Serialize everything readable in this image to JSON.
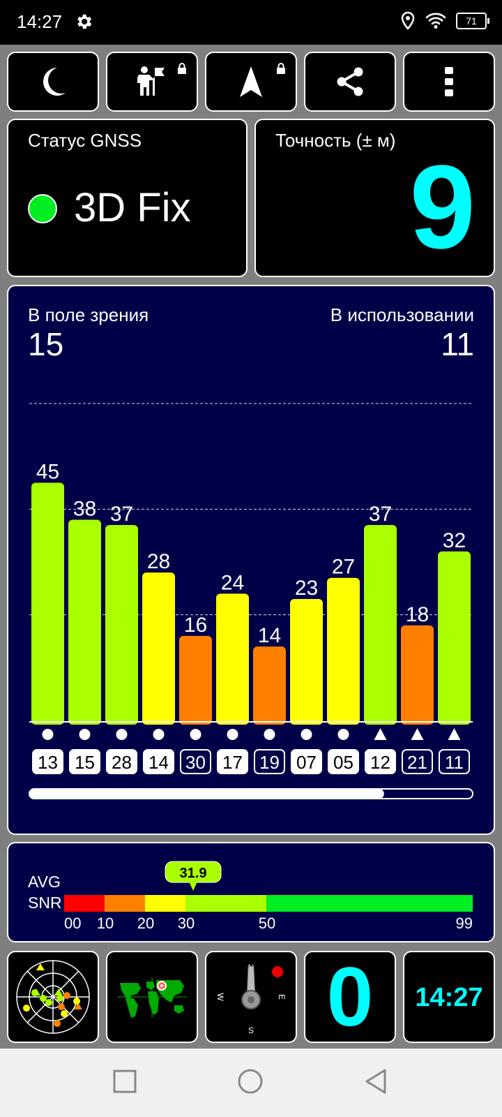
{
  "status_bar": {
    "time": "14:27",
    "battery": "71"
  },
  "toolbar": {
    "buttons": [
      {
        "icon": "moon-icon"
      },
      {
        "icon": "person-flag-icon"
      },
      {
        "icon": "navigation-arrow-icon"
      },
      {
        "icon": "share-icon"
      },
      {
        "icon": "more-vertical-icon"
      }
    ]
  },
  "gnss": {
    "label": "Статус GNSS",
    "fix": "3D Fix",
    "fix_color": "#00ee22"
  },
  "accuracy": {
    "label": "Точность (± м)",
    "value": "9",
    "value_color": "#00ffff"
  },
  "satellites": {
    "in_view_label": "В поле зрения",
    "in_view": "15",
    "in_use_label": "В использовании",
    "in_use": "11",
    "scroll_fraction": 0.8
  },
  "chart_data": {
    "type": "bar",
    "categories": [
      "13",
      "15",
      "28",
      "14",
      "30",
      "17",
      "19",
      "07",
      "05",
      "12",
      "21",
      "11"
    ],
    "values": [
      45,
      38,
      37,
      28,
      16,
      24,
      14,
      23,
      27,
      37,
      18,
      32
    ],
    "markers": [
      "circle",
      "circle",
      "circle",
      "circle",
      "circle",
      "circle",
      "circle",
      "circle",
      "circle",
      "triangle",
      "triangle",
      "triangle"
    ],
    "ids_filled": [
      true,
      true,
      true,
      true,
      false,
      true,
      false,
      true,
      true,
      true,
      false,
      false
    ],
    "ylim": [
      0,
      60
    ],
    "colors": {
      "low": "#ff8000",
      "mid": "#ffff00",
      "high": "#aaff00"
    }
  },
  "snr": {
    "label_line1": "AVG",
    "label_line2": "SNR",
    "avg": "31.9",
    "avg_value": 31.9,
    "ticks": [
      "00",
      "10",
      "20",
      "30",
      "50",
      "99"
    ],
    "segments": [
      {
        "color": "#ff0000"
      },
      {
        "color": "#ff8000"
      },
      {
        "color": "#ffff00"
      },
      {
        "color": "#aaff00"
      },
      {
        "color": "#00ee22"
      }
    ]
  },
  "bottom_tiles": {
    "speed": "0",
    "clock": "14:27",
    "compass": {
      "n": "N",
      "e": "E",
      "s": "S",
      "w": "W"
    }
  }
}
